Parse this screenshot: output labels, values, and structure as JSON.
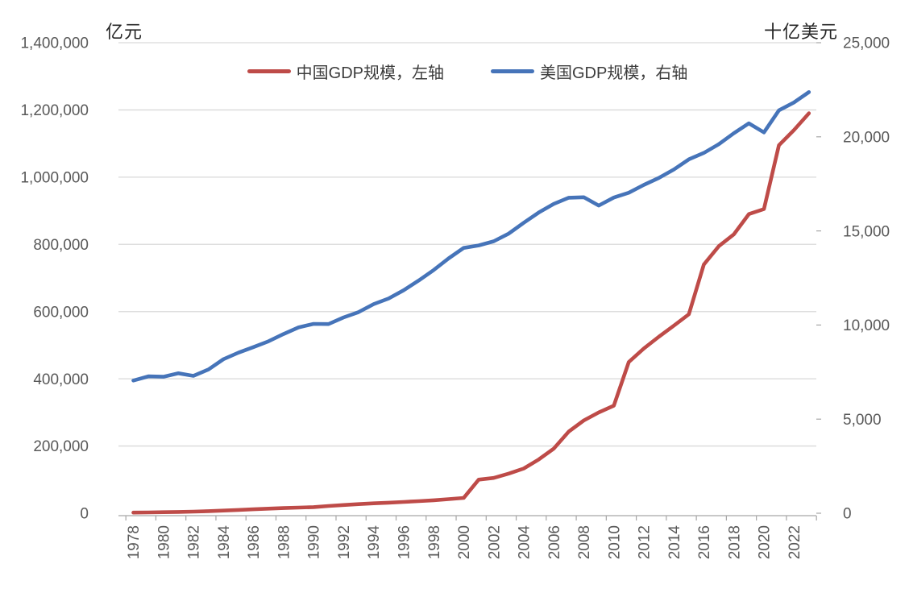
{
  "chart_data": {
    "type": "line",
    "x": [
      1978,
      1979,
      1980,
      1981,
      1982,
      1983,
      1984,
      1985,
      1986,
      1987,
      1988,
      1989,
      1990,
      1991,
      1992,
      1993,
      1994,
      1995,
      1996,
      1997,
      1998,
      1999,
      2000,
      2001,
      2002,
      2003,
      2004,
      2005,
      2006,
      2007,
      2008,
      2009,
      2010,
      2011,
      2012,
      2013,
      2014,
      2015,
      2016,
      2017,
      2018,
      2019,
      2020,
      2021,
      2022,
      2023
    ],
    "x_tick_labels": [
      "1978",
      "1980",
      "1982",
      "1984",
      "1986",
      "1988",
      "1990",
      "1992",
      "1994",
      "1996",
      "1998",
      "2000",
      "2002",
      "2004",
      "2006",
      "2008",
      "2010",
      "2012",
      "2014",
      "2016",
      "2018",
      "2020",
      "2022"
    ],
    "series": [
      {
        "name": "中国GDP规模，左轴",
        "axis": "left",
        "color": "#BE4B48",
        "values": [
          2000,
          2500,
          3000,
          3800,
          4800,
          6300,
          8000,
          9900,
          11800,
          13600,
          15300,
          16800,
          18300,
          21500,
          24500,
          27000,
          29500,
          31500,
          33500,
          36000,
          38500,
          42000,
          45500,
          100000,
          105000,
          118000,
          133000,
          160000,
          192000,
          243000,
          276000,
          300000,
          320000,
          450000,
          490000,
          525000,
          558000,
          592000,
          740000,
          795000,
          830000,
          890000,
          905000,
          1095000,
          1140000,
          1190000
        ]
      },
      {
        "name": "美国GDP规模，右轴",
        "axis": "right",
        "color": "#4674B9",
        "values": [
          7049,
          7275,
          7253,
          7434,
          7300,
          7636,
          8186,
          8530,
          8828,
          9137,
          9521,
          9873,
          10060,
          10050,
          10402,
          10683,
          11110,
          11410,
          11844,
          12365,
          12921,
          13541,
          14096,
          14231,
          14449,
          14858,
          15432,
          15977,
          16433,
          16763,
          16790,
          16349,
          16772,
          17028,
          17443,
          17812,
          18262,
          18800,
          19142,
          19612,
          20194,
          20716,
          20234,
          21408,
          21822,
          22377
        ]
      }
    ],
    "left_axis": {
      "title": "亿元",
      "min": 0,
      "max": 1400000,
      "step": 200000
    },
    "right_axis": {
      "title": "十亿美元",
      "min": 0,
      "max": 25000,
      "step": 5000
    },
    "legend_position": "top",
    "grid": true,
    "styles": {
      "grid_color": "#D9D9D9",
      "axis_line_color": "#A6A6A6",
      "tick_label_color": "#595959",
      "background": "#FFFFFF"
    }
  }
}
